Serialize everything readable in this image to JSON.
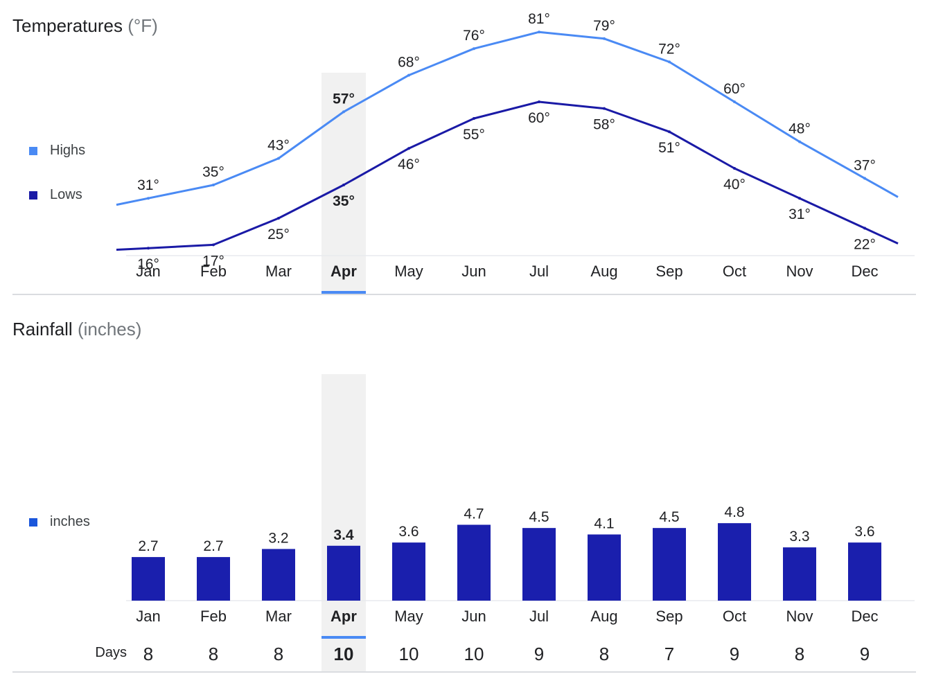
{
  "temperatures": {
    "title": "Temperatures",
    "unit": "(°F)",
    "selected_month_index": 3
  },
  "rainfall": {
    "title": "Rainfall",
    "unit": "(inches)",
    "days_label": "Days",
    "selected_month_index": 3
  },
  "colors": {
    "highs": "#4a8af4",
    "lows": "#1a1aa6",
    "bars": "#1a1fad",
    "legend_inches": "#1a56db",
    "selected_band": "#f1f1f1",
    "selected_indicator": "#4a8af4"
  },
  "chart_data": [
    {
      "type": "line",
      "title": "Temperatures (°F)",
      "categories": [
        "Jan",
        "Feb",
        "Mar",
        "Apr",
        "May",
        "Jun",
        "Jul",
        "Aug",
        "Sep",
        "Oct",
        "Nov",
        "Dec"
      ],
      "series": [
        {
          "name": "Highs",
          "values": [
            31,
            35,
            43,
            57,
            68,
            76,
            81,
            79,
            72,
            60,
            48,
            37
          ],
          "labels": [
            "31°",
            "35°",
            "43°",
            "57°",
            "68°",
            "76°",
            "81°",
            "79°",
            "72°",
            "60°",
            "48°",
            "37°"
          ]
        },
        {
          "name": "Lows",
          "values": [
            16,
            17,
            25,
            35,
            46,
            55,
            60,
            58,
            51,
            40,
            31,
            22
          ],
          "labels": [
            "16°",
            "17°",
            "25°",
            "35°",
            "46°",
            "55°",
            "60°",
            "58°",
            "51°",
            "40°",
            "31°",
            "22°"
          ]
        }
      ],
      "legend": "left",
      "grid": false
    },
    {
      "type": "bar",
      "title": "Rainfall (inches)",
      "categories": [
        "Jan",
        "Feb",
        "Mar",
        "Apr",
        "May",
        "Jun",
        "Jul",
        "Aug",
        "Sep",
        "Oct",
        "Nov",
        "Dec"
      ],
      "series": [
        {
          "name": "inches",
          "values": [
            2.7,
            2.7,
            3.2,
            3.4,
            3.6,
            4.7,
            4.5,
            4.1,
            4.5,
            4.8,
            3.3,
            3.6
          ],
          "labels": [
            "2.7",
            "2.7",
            "3.2",
            "3.4",
            "3.6",
            "4.7",
            "4.5",
            "4.1",
            "4.5",
            "4.8",
            "3.3",
            "3.6"
          ]
        }
      ],
      "days": [
        "8",
        "8",
        "8",
        "10",
        "10",
        "10",
        "9",
        "8",
        "7",
        "9",
        "8",
        "9"
      ],
      "legend": "left",
      "grid": false
    }
  ]
}
